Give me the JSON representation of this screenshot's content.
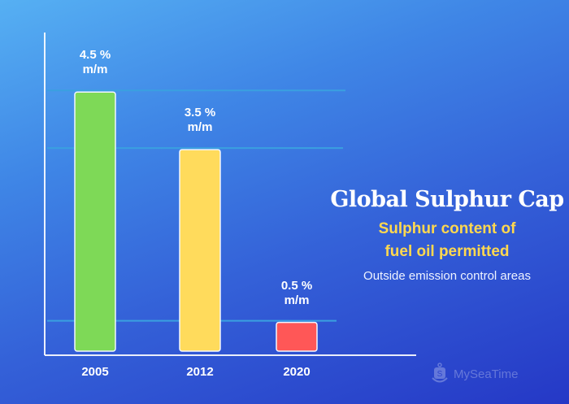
{
  "chart_data": {
    "type": "bar",
    "title": "Global Sulphur Cap",
    "subtitle": [
      "Sulphur content of",
      "fuel oil permitted"
    ],
    "note": "Outside emission control areas",
    "categories": [
      "2005",
      "2012",
      "2020"
    ],
    "values": [
      4.5,
      3.5,
      0.5
    ],
    "unit": "% m/m",
    "data_labels": [
      {
        "value": "4.5 %",
        "unit": "m/m"
      },
      {
        "value": "3.5 %",
        "unit": "m/m"
      },
      {
        "value": "0.5 %",
        "unit": "m/m"
      }
    ],
    "colors": [
      "#7ed957",
      "#ffdb5c",
      "#ff5757"
    ],
    "ylim": [
      0,
      4.8
    ],
    "grid": true,
    "xlabel": "",
    "ylabel": ""
  },
  "branding": {
    "logo_text": "MySeaTime",
    "logo_icon": "anchor-s-icon"
  }
}
